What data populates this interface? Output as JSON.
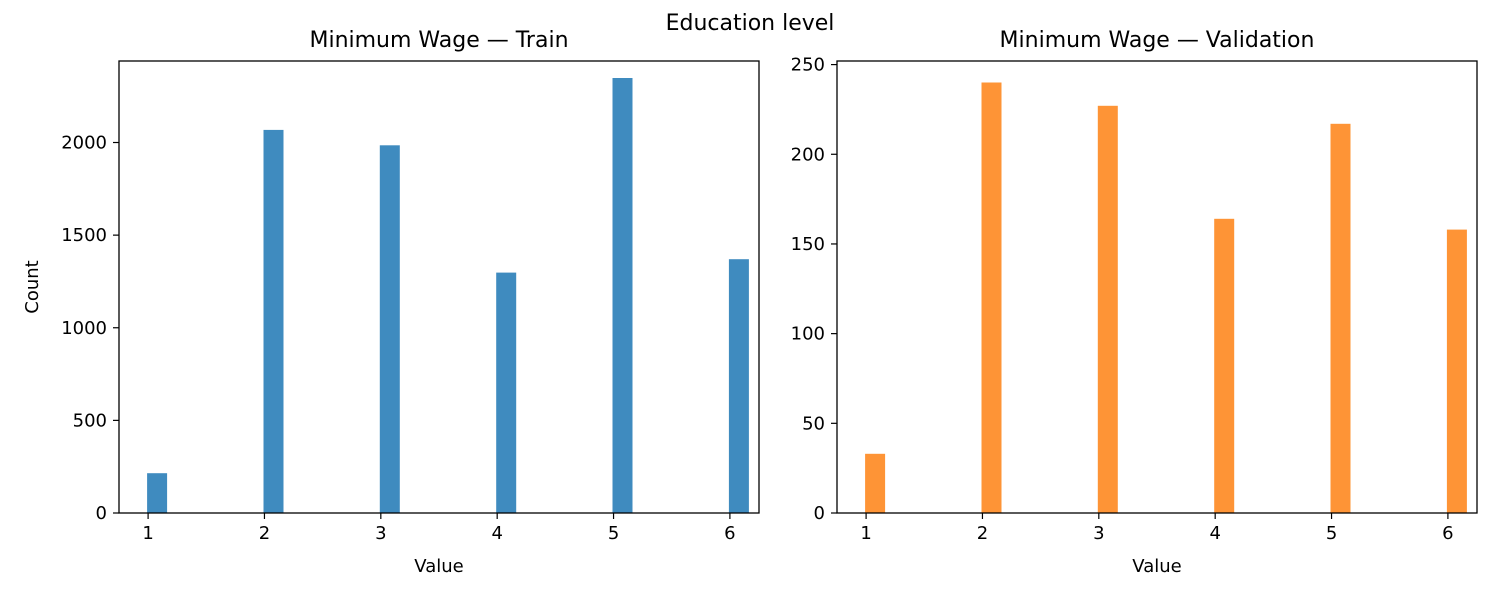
{
  "figure": {
    "suptitle": "Education level"
  },
  "chart_data": [
    {
      "type": "bar",
      "title": "Minimum Wage — Train",
      "xlabel": "Value",
      "ylabel": "Count",
      "x": [
        1,
        2,
        3,
        4,
        5,
        6
      ],
      "values": [
        215,
        2068,
        1985,
        1298,
        2348,
        1370
      ],
      "xlim": [
        0.75,
        6.25
      ],
      "ylim": [
        0,
        2440
      ],
      "xticks": [
        1,
        2,
        3,
        4,
        5,
        6
      ],
      "yticks": [
        0,
        500,
        1000,
        1500,
        2000
      ],
      "color": "#3f8bbf",
      "grid": false,
      "legend": "none"
    },
    {
      "type": "bar",
      "title": "Minimum Wage — Validation",
      "xlabel": "Value",
      "ylabel": "",
      "x": [
        1,
        2,
        3,
        4,
        5,
        6
      ],
      "values": [
        33,
        240,
        227,
        164,
        217,
        158
      ],
      "xlim": [
        0.75,
        6.25
      ],
      "ylim": [
        0,
        252
      ],
      "xticks": [
        1,
        2,
        3,
        4,
        5,
        6
      ],
      "yticks": [
        0,
        50,
        100,
        150,
        200,
        250
      ],
      "color": "#fe9436",
      "grid": false,
      "legend": "none"
    }
  ]
}
